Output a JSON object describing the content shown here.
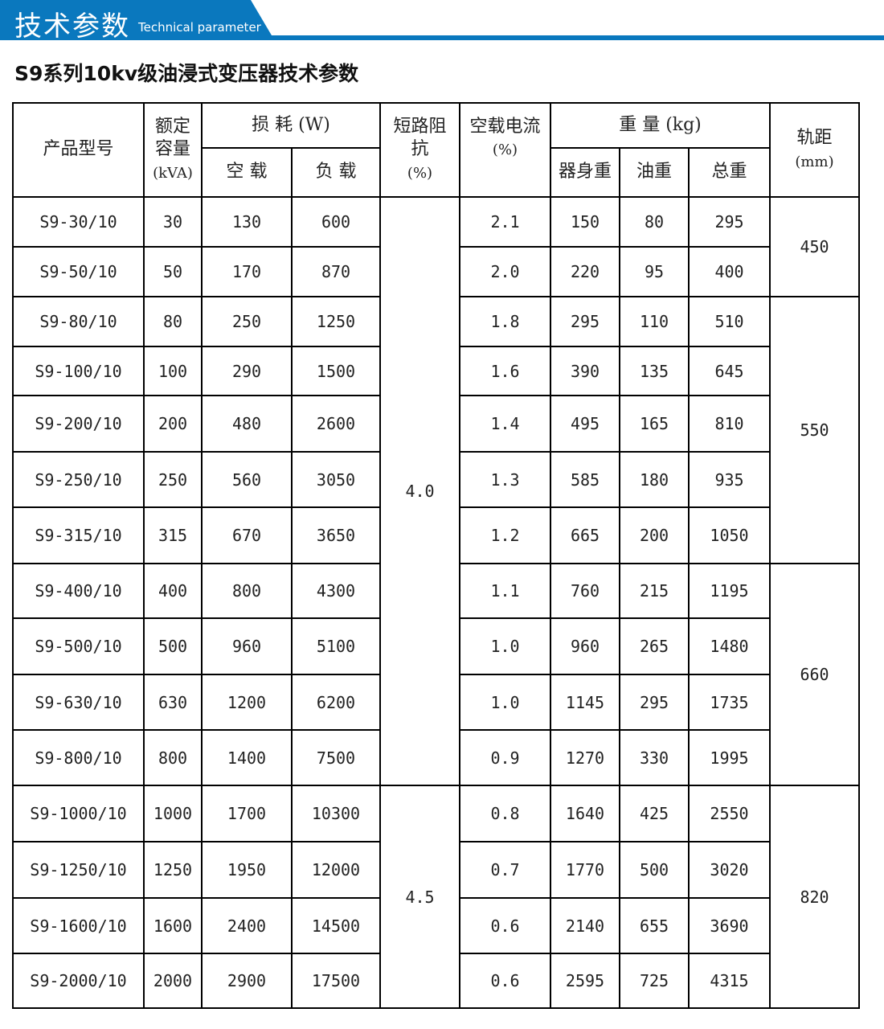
{
  "banner": {
    "title": "技术参数",
    "subtitle": "Technical parameter",
    "color": "#0a78be"
  },
  "page_title": "S9系列10kv级油浸式变压器技术参数",
  "table": {
    "headers": {
      "model": "产品型号",
      "capacity_1": "额定",
      "capacity_2": "容量",
      "capacity_unit": "(kVA)",
      "loss": "损 耗 (W)",
      "loss_noload": "空 载",
      "loss_load": "负 载",
      "impedance_1": "短路阻",
      "impedance_2": "抗",
      "impedance_unit": "(%)",
      "current_1": "空载电流",
      "current_unit": "(%)",
      "weight": "重 量 (kg)",
      "weight_body": "器身重",
      "weight_oil": "油重",
      "weight_total": "总重",
      "gauge": "轨距",
      "gauge_unit": "(mm)"
    },
    "rows": [
      [
        "S9-30/10",
        "30",
        "130",
        "600",
        "2.1",
        "150",
        "80",
        "295"
      ],
      [
        "S9-50/10",
        "50",
        "170",
        "870",
        "2.0",
        "220",
        "95",
        "400"
      ],
      [
        "S9-80/10",
        "80",
        "250",
        "1250",
        "1.8",
        "295",
        "110",
        "510"
      ],
      [
        "S9-100/10",
        "100",
        "290",
        "1500",
        "1.6",
        "390",
        "135",
        "645"
      ],
      [
        "S9-200/10",
        "200",
        "480",
        "2600",
        "1.4",
        "495",
        "165",
        "810"
      ],
      [
        "S9-250/10",
        "250",
        "560",
        "3050",
        "1.3",
        "585",
        "180",
        "935"
      ],
      [
        "S9-315/10",
        "315",
        "670",
        "3650",
        "1.2",
        "665",
        "200",
        "1050"
      ],
      [
        "S9-400/10",
        "400",
        "800",
        "4300",
        "1.1",
        "760",
        "215",
        "1195"
      ],
      [
        "S9-500/10",
        "500",
        "960",
        "5100",
        "1.0",
        "960",
        "265",
        "1480"
      ],
      [
        "S9-630/10",
        "630",
        "1200",
        "6200",
        "1.0",
        "1145",
        "295",
        "1735"
      ],
      [
        "S9-800/10",
        "800",
        "1400",
        "7500",
        "0.9",
        "1270",
        "330",
        "1995"
      ],
      [
        "S9-1000/10",
        "1000",
        "1700",
        "10300",
        "0.8",
        "1640",
        "425",
        "2550"
      ],
      [
        "S9-1250/10",
        "1250",
        "1950",
        "12000",
        "0.7",
        "1770",
        "500",
        "3020"
      ],
      [
        "S9-1600/10",
        "1600",
        "2400",
        "14500",
        "0.6",
        "2140",
        "655",
        "3690"
      ],
      [
        "S9-2000/10",
        "2000",
        "2900",
        "17500",
        "0.6",
        "2595",
        "725",
        "4315"
      ]
    ],
    "impedance_groups": [
      {
        "value": "4.0",
        "rows": 11
      },
      {
        "value": "4.5",
        "rows": 4
      }
    ],
    "gauge_groups": [
      {
        "value": "450",
        "rows": 2
      },
      {
        "value": "550",
        "rows": 5
      },
      {
        "value": "660",
        "rows": 4
      },
      {
        "value": "820",
        "rows": 4
      }
    ]
  }
}
